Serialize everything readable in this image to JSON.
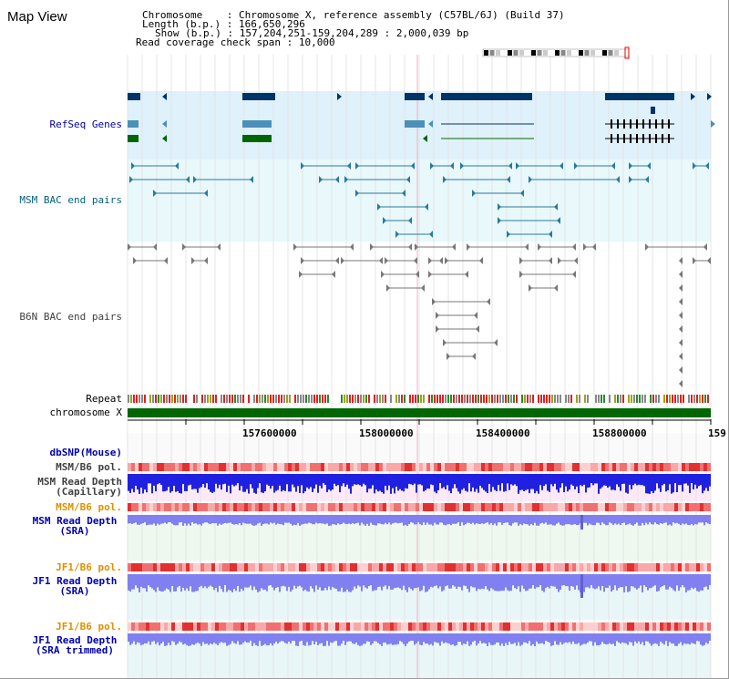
{
  "title": "Map View",
  "info": {
    "chromosome_label": "Chromosome",
    "chromosome_value": "Chromosome X, reference assembly (C57BL/6J) (Build 37)",
    "length_label": "Length (b.p.)",
    "length_value": "166,650,296",
    "show_label": "Show (b.p.)",
    "show_value": "157,204,251-159,204,289 : 2,000,039 bp",
    "coverage_label": "Read coverage check span",
    "coverage_value": "10,000"
  },
  "tracks": {
    "refseq": "RefSeq Genes",
    "msm_bac": "MSM BAC end pairs",
    "b6n_bac": "B6N BAC end pairs",
    "repeat": "Repeat",
    "chromosome": "chromosome X",
    "dbsnp": "dbSNP(Mouse)",
    "msm_b6_pol_1": "MSM/B6 pol.",
    "msm_depth_cap_1": "MSM Read Depth",
    "msm_depth_cap_2": "(Capillary)",
    "msm_b6_pol_2": "MSM/B6 pol.",
    "msm_depth_sra_1": "MSM Read Depth",
    "msm_depth_sra_2": "(SRA)",
    "jf1_b6_pol_1": "JF1/B6 pol.",
    "jf1_depth_sra_1": "JF1 Read Depth",
    "jf1_depth_sra_2": "(SRA)",
    "jf1_b6_pol_2": "JF1/B6 pol.",
    "jf1_depth_trim_1": "JF1 Read Depth",
    "jf1_depth_trim_2": "(SRA trimmed)"
  },
  "axis": {
    "ticks": [
      "157600000",
      "158000000",
      "158400000",
      "158800000",
      "159"
    ]
  },
  "colors": {
    "label_blue": "#0000aa",
    "label_teal": "#006080",
    "label_gray": "#404040",
    "label_orange": "#e09000",
    "gene_dark": "#003366",
    "gene_mid": "#4a90b8",
    "gene_green": "#006600",
    "chrom_bar": "#006600",
    "depth_blue": "#2020e0",
    "depth_light": "#8080f0"
  }
}
